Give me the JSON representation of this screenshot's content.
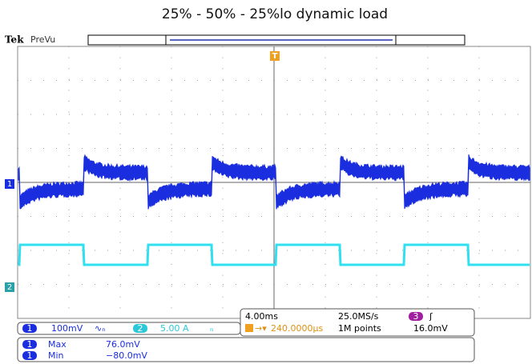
{
  "header": {
    "title": "25% - 50% - 25%lo dynamic load",
    "brand": "Tek",
    "mode": "PreVu"
  },
  "markers": {
    "ch1": "1",
    "ch2": "2",
    "trigger": "T"
  },
  "status": {
    "ch1_badge": "1",
    "ch1_scale": "100mV",
    "ch2_badge": "2",
    "ch2_scale": "5.00 A",
    "timebase": "4.00ms",
    "sample_rate": "25.0MS/s",
    "trigger_source": "3",
    "trigger_pos": "240.0000µs",
    "record": "1M points",
    "trigger_level": "16.0mV"
  },
  "measurements": [
    {
      "badge": "1",
      "name": "Max",
      "value": "76.0mV"
    },
    {
      "badge": "1",
      "name": "Min",
      "value": "−80.0mV"
    }
  ]
}
